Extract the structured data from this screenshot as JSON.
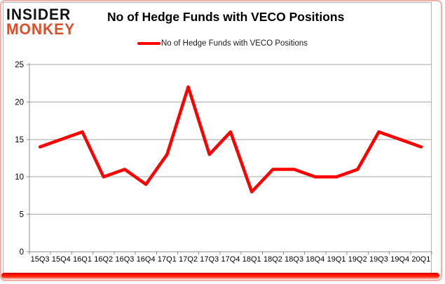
{
  "logo": {
    "line1": "INSIDER",
    "line2": "MONKEY"
  },
  "header": {
    "title": "No of Hedge Funds with VECO Positions"
  },
  "legend": {
    "label": "No of Hedge Funds with VECO Positions"
  },
  "chart_data": {
    "type": "line",
    "title": "No of Hedge Funds with VECO Positions",
    "categories": [
      "15Q3",
      "15Q4",
      "16Q1",
      "16Q2",
      "16Q3",
      "16Q4",
      "17Q1",
      "17Q2",
      "17Q3",
      "17Q4",
      "18Q1",
      "18Q2",
      "18Q3",
      "18Q4",
      "19Q1",
      "19Q2",
      "19Q3",
      "19Q4",
      "20Q1"
    ],
    "series": [
      {
        "name": "No of Hedge Funds with VECO Positions",
        "values": [
          14,
          15,
          16,
          10,
          11,
          9,
          13,
          22,
          13,
          16,
          8,
          11,
          11,
          10,
          10,
          11,
          16,
          15,
          14
        ]
      }
    ],
    "xlabel": "",
    "ylabel": "",
    "ylim": [
      0,
      25
    ],
    "yticks": [
      0,
      5,
      10,
      15,
      20,
      25
    ],
    "grid": true,
    "legend_position": "top-center"
  },
  "colors": {
    "line": "#ff0000",
    "grid": "#a6a6a6",
    "axis": "#8c8c8c",
    "tick_text": "#000000",
    "logo_accent": "#d94e2b",
    "bottom_bar": "#ff1200",
    "frame_border": "#f0b3ab"
  }
}
